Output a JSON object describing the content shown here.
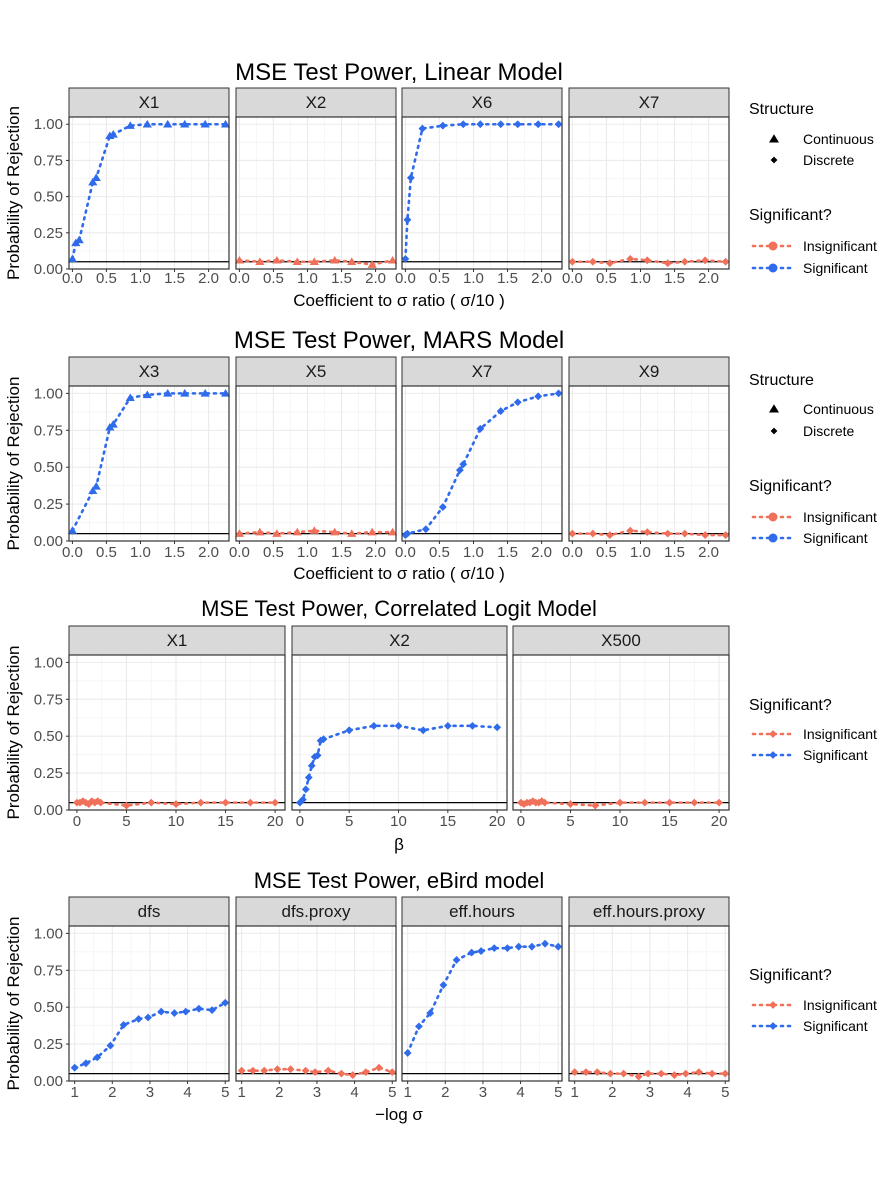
{
  "colors": {
    "significant": "#2F6BEA",
    "insignificant": "#F0705A",
    "strip_fill": "#D9D9D9",
    "grid": "#EBEBEB",
    "text": "#1A1A1A",
    "axis_text": "#4D4D4D"
  },
  "legend_labels": {
    "structure_title": "Structure",
    "continuous": "Continuous",
    "discrete": "Discrete",
    "significant_title": "Significant?",
    "insignificant": "Insignificant",
    "significant": "Significant"
  },
  "chart_data": [
    {
      "type": "line",
      "title": "MSE Test Power, Linear Model",
      "xlabel": "Coefficient to σ ratio ( σ/10 )",
      "ylabel": "Probability of Rejection",
      "xlim": [
        -0.05,
        2.3
      ],
      "ylim": [
        0,
        1.05
      ],
      "xticks": [
        0.0,
        0.5,
        1.0,
        1.5,
        2.0
      ],
      "xtick_labels": [
        "0.0",
        "0.5",
        "1.0",
        "1.5",
        "2.0"
      ],
      "yticks": [
        0,
        0.25,
        0.5,
        0.75,
        1.0
      ],
      "ytick_labels": [
        "0.00",
        "0.25",
        "0.50",
        "0.75",
        "1.00"
      ],
      "reference_line": 0.05,
      "legend": [
        "structure",
        "significance"
      ],
      "panels": [
        {
          "name": "X1",
          "significant": true,
          "marker": "triangle",
          "x": [
            0,
            0.05,
            0.1,
            0.3,
            0.35,
            0.55,
            0.6,
            0.85,
            1.1,
            1.4,
            1.65,
            1.95,
            2.25
          ],
          "y": [
            0.07,
            0.18,
            0.2,
            0.6,
            0.63,
            0.92,
            0.93,
            0.99,
            1.0,
            1.0,
            1.0,
            1.0,
            1.0
          ]
        },
        {
          "name": "X2",
          "significant": false,
          "marker": "triangle",
          "x": [
            0,
            0.3,
            0.55,
            0.85,
            1.1,
            1.4,
            1.65,
            1.95,
            2.25
          ],
          "y": [
            0.06,
            0.05,
            0.06,
            0.05,
            0.05,
            0.06,
            0.05,
            0.03,
            0.06
          ]
        },
        {
          "name": "X6",
          "significant": true,
          "marker": "diamond",
          "x": [
            0,
            0.03,
            0.08,
            0.25,
            0.55,
            0.85,
            1.1,
            1.4,
            1.65,
            1.95,
            2.25
          ],
          "y": [
            0.07,
            0.34,
            0.63,
            0.97,
            0.99,
            1.0,
            1.0,
            1.0,
            1.0,
            1.0,
            1.0
          ]
        },
        {
          "name": "X7",
          "significant": false,
          "marker": "diamond",
          "x": [
            0,
            0.3,
            0.55,
            0.85,
            1.1,
            1.4,
            1.65,
            1.95,
            2.25
          ],
          "y": [
            0.05,
            0.05,
            0.04,
            0.07,
            0.06,
            0.04,
            0.05,
            0.06,
            0.05
          ]
        }
      ]
    },
    {
      "type": "line",
      "title": "MSE Test Power, MARS Model",
      "xlabel": "Coefficient to σ ratio ( σ/10 )",
      "ylabel": "Probability of Rejection",
      "xlim": [
        -0.05,
        2.3
      ],
      "ylim": [
        0,
        1.05
      ],
      "xticks": [
        0.0,
        0.5,
        1.0,
        1.5,
        2.0
      ],
      "xtick_labels": [
        "0.0",
        "0.5",
        "1.0",
        "1.5",
        "2.0"
      ],
      "yticks": [
        0,
        0.25,
        0.5,
        0.75,
        1.0
      ],
      "ytick_labels": [
        "0.00",
        "0.25",
        "0.50",
        "0.75",
        "1.00"
      ],
      "reference_line": 0.05,
      "legend": [
        "structure",
        "significance"
      ],
      "panels": [
        {
          "name": "X3",
          "significant": true,
          "marker": "triangle",
          "x": [
            0,
            0.3,
            0.35,
            0.55,
            0.6,
            0.85,
            1.1,
            1.4,
            1.65,
            1.95,
            2.25
          ],
          "y": [
            0.07,
            0.34,
            0.37,
            0.77,
            0.79,
            0.97,
            0.99,
            1.0,
            1.0,
            1.0,
            1.0
          ]
        },
        {
          "name": "X5",
          "significant": false,
          "marker": "triangle",
          "x": [
            0,
            0.3,
            0.55,
            0.85,
            1.1,
            1.4,
            1.65,
            1.95,
            2.25
          ],
          "y": [
            0.05,
            0.06,
            0.05,
            0.06,
            0.07,
            0.06,
            0.05,
            0.06,
            0.06
          ]
        },
        {
          "name": "X7",
          "significant": true,
          "marker": "diamond",
          "x": [
            0,
            0.03,
            0.3,
            0.55,
            0.8,
            0.85,
            1.1,
            1.4,
            1.65,
            1.95,
            2.25
          ],
          "y": [
            0.04,
            0.05,
            0.08,
            0.23,
            0.48,
            0.52,
            0.76,
            0.88,
            0.94,
            0.98,
            1.0
          ]
        },
        {
          "name": "X9",
          "significant": false,
          "marker": "diamond",
          "x": [
            0,
            0.3,
            0.55,
            0.85,
            1.1,
            1.4,
            1.65,
            1.95,
            2.25
          ],
          "y": [
            0.05,
            0.05,
            0.04,
            0.07,
            0.06,
            0.05,
            0.05,
            0.04,
            0.04
          ]
        }
      ]
    },
    {
      "type": "line",
      "title": "MSE Test Power, Correlated Logit Model",
      "xlabel": "β",
      "ylabel": "Probability of Rejection",
      "xlim": [
        -0.8,
        21
      ],
      "ylim": [
        0,
        1.05
      ],
      "xticks": [
        0,
        5,
        10,
        15,
        20
      ],
      "xtick_labels": [
        "0",
        "5",
        "10",
        "15",
        "20"
      ],
      "yticks": [
        0,
        0.25,
        0.5,
        0.75,
        1.0
      ],
      "ytick_labels": [
        "0.00",
        "0.25",
        "0.50",
        "0.75",
        "1.00"
      ],
      "reference_line": 0.05,
      "legend": [
        "significance"
      ],
      "panels": [
        {
          "name": "X1",
          "significant": false,
          "marker": "diamond",
          "x": [
            0,
            0.3,
            0.6,
            0.9,
            1.2,
            1.5,
            1.8,
            2.1,
            2.4,
            5,
            7.5,
            10,
            12.5,
            15,
            17.5,
            20
          ],
          "y": [
            0.05,
            0.05,
            0.06,
            0.05,
            0.04,
            0.06,
            0.05,
            0.06,
            0.05,
            0.03,
            0.05,
            0.04,
            0.05,
            0.05,
            0.05,
            0.05
          ]
        },
        {
          "name": "X2",
          "significant": true,
          "marker": "diamond",
          "x": [
            0,
            0.3,
            0.6,
            0.9,
            1.2,
            1.5,
            1.8,
            2.1,
            2.4,
            5,
            7.5,
            10,
            12.5,
            15,
            17.5,
            20
          ],
          "y": [
            0.05,
            0.07,
            0.14,
            0.22,
            0.3,
            0.36,
            0.37,
            0.47,
            0.48,
            0.54,
            0.57,
            0.57,
            0.54,
            0.57,
            0.57,
            0.56
          ]
        },
        {
          "name": "X500",
          "significant": false,
          "marker": "diamond",
          "x": [
            0,
            0.3,
            0.6,
            0.9,
            1.2,
            1.5,
            1.8,
            2.1,
            2.4,
            5,
            7.5,
            10,
            12.5,
            15,
            17.5,
            20
          ],
          "y": [
            0.05,
            0.04,
            0.05,
            0.05,
            0.06,
            0.05,
            0.05,
            0.06,
            0.05,
            0.04,
            0.03,
            0.05,
            0.05,
            0.05,
            0.05,
            0.05
          ]
        }
      ]
    },
    {
      "type": "line",
      "title": "MSE Test Power, eBird model",
      "xlabel": "−log σ",
      "ylabel": "Probability of Rejection",
      "xlim": [
        0.85,
        5.1
      ],
      "ylim": [
        0,
        1.05
      ],
      "xticks": [
        1,
        2,
        3,
        4,
        5
      ],
      "xtick_labels": [
        "1",
        "2",
        "3",
        "4",
        "5"
      ],
      "yticks": [
        0,
        0.25,
        0.5,
        0.75,
        1.0
      ],
      "ytick_labels": [
        "0.00",
        "0.25",
        "0.50",
        "0.75",
        "1.00"
      ],
      "reference_line": 0.05,
      "legend": [
        "significance"
      ],
      "panels": [
        {
          "name": "dfs",
          "significant": true,
          "marker": "diamond",
          "x": [
            1,
            1.3,
            1.6,
            1.95,
            2.3,
            2.7,
            2.95,
            3.3,
            3.65,
            3.95,
            4.3,
            4.65,
            5
          ],
          "y": [
            0.09,
            0.12,
            0.16,
            0.24,
            0.38,
            0.42,
            0.43,
            0.47,
            0.46,
            0.47,
            0.49,
            0.48,
            0.53
          ]
        },
        {
          "name": "dfs.proxy",
          "significant": false,
          "marker": "diamond",
          "x": [
            1,
            1.3,
            1.6,
            1.95,
            2.3,
            2.7,
            2.95,
            3.3,
            3.65,
            3.95,
            4.3,
            4.65,
            5
          ],
          "y": [
            0.07,
            0.07,
            0.07,
            0.08,
            0.08,
            0.07,
            0.06,
            0.07,
            0.05,
            0.04,
            0.06,
            0.09,
            0.06
          ]
        },
        {
          "name": "eff.hours",
          "significant": true,
          "marker": "diamond",
          "x": [
            1,
            1.3,
            1.6,
            1.95,
            2.3,
            2.7,
            2.95,
            3.3,
            3.65,
            3.95,
            4.3,
            4.65,
            5
          ],
          "y": [
            0.19,
            0.37,
            0.46,
            0.65,
            0.82,
            0.87,
            0.88,
            0.9,
            0.9,
            0.91,
            0.91,
            0.93,
            0.91
          ]
        },
        {
          "name": "eff.hours.proxy",
          "significant": false,
          "marker": "diamond",
          "x": [
            1,
            1.3,
            1.6,
            1.95,
            2.3,
            2.7,
            2.95,
            3.3,
            3.65,
            3.95,
            4.3,
            4.65,
            5
          ],
          "y": [
            0.06,
            0.06,
            0.06,
            0.05,
            0.05,
            0.03,
            0.05,
            0.05,
            0.04,
            0.05,
            0.06,
            0.05,
            0.05
          ]
        }
      ]
    }
  ]
}
